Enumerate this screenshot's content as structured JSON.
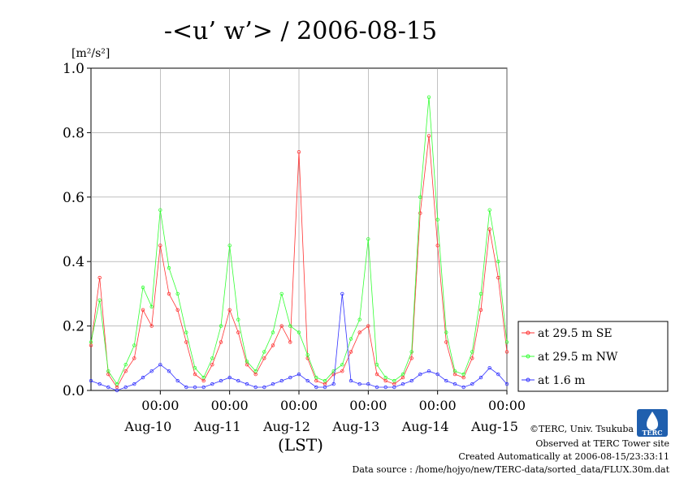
{
  "chart_data": {
    "type": "line",
    "title": "-<u’ w’> / 2006-08-15",
    "ylabel": "[m²/s²]",
    "xlabel": "(LST)",
    "ylim": [
      0,
      1.0
    ],
    "xlim": [
      "2006-08-09 00:00",
      "2006-08-15 00:00"
    ],
    "grid": true,
    "legend_position": "right",
    "yticks": [
      "0.0",
      "0.2",
      "0.4",
      "0.6",
      "0.8",
      "1.0"
    ],
    "xticks": [
      {
        "x": "2006-08-10 00:00",
        "time": "00:00",
        "date": "Aug-10"
      },
      {
        "x": "2006-08-11 00:00",
        "time": "00:00",
        "date": "Aug-11"
      },
      {
        "x": "2006-08-12 00:00",
        "time": "00:00",
        "date": "Aug-12"
      },
      {
        "x": "2006-08-13 00:00",
        "time": "00:00",
        "date": "Aug-13"
      },
      {
        "x": "2006-08-14 00:00",
        "time": "00:00",
        "date": "Aug-14"
      },
      {
        "x": "2006-08-15 00:00",
        "time": "00:00",
        "date": "Aug-15"
      }
    ],
    "series": [
      {
        "name": "at 29.5 m SE",
        "color": "#ff3333",
        "points": [
          [
            "2006-08-09 00:00",
            0.14
          ],
          [
            "2006-08-09 03:00",
            0.35
          ],
          [
            "2006-08-09 06:00",
            0.05
          ],
          [
            "2006-08-09 09:00",
            0.01
          ],
          [
            "2006-08-09 12:00",
            0.06
          ],
          [
            "2006-08-09 15:00",
            0.1
          ],
          [
            "2006-08-09 18:00",
            0.25
          ],
          [
            "2006-08-09 21:00",
            0.2
          ],
          [
            "2006-08-10 00:00",
            0.45
          ],
          [
            "2006-08-10 03:00",
            0.3
          ],
          [
            "2006-08-10 06:00",
            0.25
          ],
          [
            "2006-08-10 09:00",
            0.15
          ],
          [
            "2006-08-10 12:00",
            0.05
          ],
          [
            "2006-08-10 15:00",
            0.03
          ],
          [
            "2006-08-10 18:00",
            0.08
          ],
          [
            "2006-08-10 21:00",
            0.15
          ],
          [
            "2006-08-11 00:00",
            0.25
          ],
          [
            "2006-08-11 03:00",
            0.18
          ],
          [
            "2006-08-11 06:00",
            0.08
          ],
          [
            "2006-08-11 09:00",
            0.05
          ],
          [
            "2006-08-11 12:00",
            0.1
          ],
          [
            "2006-08-11 15:00",
            0.14
          ],
          [
            "2006-08-11 18:00",
            0.2
          ],
          [
            "2006-08-11 21:00",
            0.15
          ],
          [
            "2006-08-12 00:00",
            0.74
          ],
          [
            "2006-08-12 03:00",
            0.1
          ],
          [
            "2006-08-12 06:00",
            0.03
          ],
          [
            "2006-08-12 09:00",
            0.02
          ],
          [
            "2006-08-12 12:00",
            0.05
          ],
          [
            "2006-08-12 15:00",
            0.06
          ],
          [
            "2006-08-12 18:00",
            0.12
          ],
          [
            "2006-08-12 21:00",
            0.18
          ],
          [
            "2006-08-13 00:00",
            0.2
          ],
          [
            "2006-08-13 03:00",
            0.05
          ],
          [
            "2006-08-13 06:00",
            0.03
          ],
          [
            "2006-08-13 09:00",
            0.02
          ],
          [
            "2006-08-13 12:00",
            0.04
          ],
          [
            "2006-08-13 15:00",
            0.1
          ],
          [
            "2006-08-13 18:00",
            0.55
          ],
          [
            "2006-08-13 21:00",
            0.79
          ],
          [
            "2006-08-14 00:00",
            0.45
          ],
          [
            "2006-08-14 03:00",
            0.15
          ],
          [
            "2006-08-14 06:00",
            0.05
          ],
          [
            "2006-08-14 09:00",
            0.04
          ],
          [
            "2006-08-14 12:00",
            0.1
          ],
          [
            "2006-08-14 15:00",
            0.25
          ],
          [
            "2006-08-14 18:00",
            0.5
          ],
          [
            "2006-08-14 21:00",
            0.35
          ],
          [
            "2006-08-15 00:00",
            0.12
          ]
        ]
      },
      {
        "name": "at 29.5 m NW",
        "color": "#33ff33",
        "points": [
          [
            "2006-08-09 00:00",
            0.15
          ],
          [
            "2006-08-09 03:00",
            0.28
          ],
          [
            "2006-08-09 06:00",
            0.06
          ],
          [
            "2006-08-09 09:00",
            0.02
          ],
          [
            "2006-08-09 12:00",
            0.08
          ],
          [
            "2006-08-09 15:00",
            0.14
          ],
          [
            "2006-08-09 18:00",
            0.32
          ],
          [
            "2006-08-09 21:00",
            0.26
          ],
          [
            "2006-08-10 00:00",
            0.56
          ],
          [
            "2006-08-10 03:00",
            0.38
          ],
          [
            "2006-08-10 06:00",
            0.3
          ],
          [
            "2006-08-10 09:00",
            0.18
          ],
          [
            "2006-08-10 12:00",
            0.07
          ],
          [
            "2006-08-10 15:00",
            0.04
          ],
          [
            "2006-08-10 18:00",
            0.1
          ],
          [
            "2006-08-10 21:00",
            0.2
          ],
          [
            "2006-08-11 00:00",
            0.45
          ],
          [
            "2006-08-11 03:00",
            0.22
          ],
          [
            "2006-08-11 06:00",
            0.09
          ],
          [
            "2006-08-11 09:00",
            0.06
          ],
          [
            "2006-08-11 12:00",
            0.12
          ],
          [
            "2006-08-11 15:00",
            0.18
          ],
          [
            "2006-08-11 18:00",
            0.3
          ],
          [
            "2006-08-11 21:00",
            0.2
          ],
          [
            "2006-08-12 00:00",
            0.18
          ],
          [
            "2006-08-12 03:00",
            0.11
          ],
          [
            "2006-08-12 06:00",
            0.04
          ],
          [
            "2006-08-12 09:00",
            0.03
          ],
          [
            "2006-08-12 12:00",
            0.06
          ],
          [
            "2006-08-12 15:00",
            0.08
          ],
          [
            "2006-08-12 18:00",
            0.16
          ],
          [
            "2006-08-12 21:00",
            0.22
          ],
          [
            "2006-08-13 00:00",
            0.47
          ],
          [
            "2006-08-13 03:00",
            0.08
          ],
          [
            "2006-08-13 06:00",
            0.04
          ],
          [
            "2006-08-13 09:00",
            0.03
          ],
          [
            "2006-08-13 12:00",
            0.05
          ],
          [
            "2006-08-13 15:00",
            0.12
          ],
          [
            "2006-08-13 18:00",
            0.6
          ],
          [
            "2006-08-13 21:00",
            0.91
          ],
          [
            "2006-08-14 00:00",
            0.53
          ],
          [
            "2006-08-14 03:00",
            0.18
          ],
          [
            "2006-08-14 06:00",
            0.06
          ],
          [
            "2006-08-14 09:00",
            0.05
          ],
          [
            "2006-08-14 12:00",
            0.12
          ],
          [
            "2006-08-14 15:00",
            0.3
          ],
          [
            "2006-08-14 18:00",
            0.56
          ],
          [
            "2006-08-14 21:00",
            0.4
          ],
          [
            "2006-08-15 00:00",
            0.15
          ]
        ]
      },
      {
        "name": "at 1.6 m",
        "color": "#3333ff",
        "points": [
          [
            "2006-08-09 00:00",
            0.03
          ],
          [
            "2006-08-09 03:00",
            0.02
          ],
          [
            "2006-08-09 06:00",
            0.01
          ],
          [
            "2006-08-09 09:00",
            0.0
          ],
          [
            "2006-08-09 12:00",
            0.01
          ],
          [
            "2006-08-09 15:00",
            0.02
          ],
          [
            "2006-08-09 18:00",
            0.04
          ],
          [
            "2006-08-09 21:00",
            0.06
          ],
          [
            "2006-08-10 00:00",
            0.08
          ],
          [
            "2006-08-10 03:00",
            0.06
          ],
          [
            "2006-08-10 06:00",
            0.03
          ],
          [
            "2006-08-10 09:00",
            0.01
          ],
          [
            "2006-08-10 12:00",
            0.01
          ],
          [
            "2006-08-10 15:00",
            0.01
          ],
          [
            "2006-08-10 18:00",
            0.02
          ],
          [
            "2006-08-10 21:00",
            0.03
          ],
          [
            "2006-08-11 00:00",
            0.04
          ],
          [
            "2006-08-11 03:00",
            0.03
          ],
          [
            "2006-08-11 06:00",
            0.02
          ],
          [
            "2006-08-11 09:00",
            0.01
          ],
          [
            "2006-08-11 12:00",
            0.01
          ],
          [
            "2006-08-11 15:00",
            0.02
          ],
          [
            "2006-08-11 18:00",
            0.03
          ],
          [
            "2006-08-11 21:00",
            0.04
          ],
          [
            "2006-08-12 00:00",
            0.05
          ],
          [
            "2006-08-12 03:00",
            0.03
          ],
          [
            "2006-08-12 06:00",
            0.01
          ],
          [
            "2006-08-12 09:00",
            0.01
          ],
          [
            "2006-08-12 12:00",
            0.02
          ],
          [
            "2006-08-12 15:00",
            0.3
          ],
          [
            "2006-08-12 18:00",
            0.03
          ],
          [
            "2006-08-12 21:00",
            0.02
          ],
          [
            "2006-08-13 00:00",
            0.02
          ],
          [
            "2006-08-13 03:00",
            0.01
          ],
          [
            "2006-08-13 06:00",
            0.01
          ],
          [
            "2006-08-13 09:00",
            0.01
          ],
          [
            "2006-08-13 12:00",
            0.02
          ],
          [
            "2006-08-13 15:00",
            0.03
          ],
          [
            "2006-08-13 18:00",
            0.05
          ],
          [
            "2006-08-13 21:00",
            0.06
          ],
          [
            "2006-08-14 00:00",
            0.05
          ],
          [
            "2006-08-14 03:00",
            0.03
          ],
          [
            "2006-08-14 06:00",
            0.02
          ],
          [
            "2006-08-14 09:00",
            0.01
          ],
          [
            "2006-08-14 12:00",
            0.02
          ],
          [
            "2006-08-14 15:00",
            0.04
          ],
          [
            "2006-08-14 18:00",
            0.07
          ],
          [
            "2006-08-14 21:00",
            0.05
          ],
          [
            "2006-08-15 00:00",
            0.02
          ]
        ]
      }
    ]
  },
  "footer": {
    "copyright": "©TERC, Univ. Tsukuba",
    "observed": "Observed at TERC Tower site",
    "created": "Created Automatically at 2006-08-15/23:33:11",
    "source": "Data source : /home/hojyo/new/TERC-data/sorted_data/FLUX.30m.dat"
  },
  "logo": {
    "text": "TERC"
  }
}
